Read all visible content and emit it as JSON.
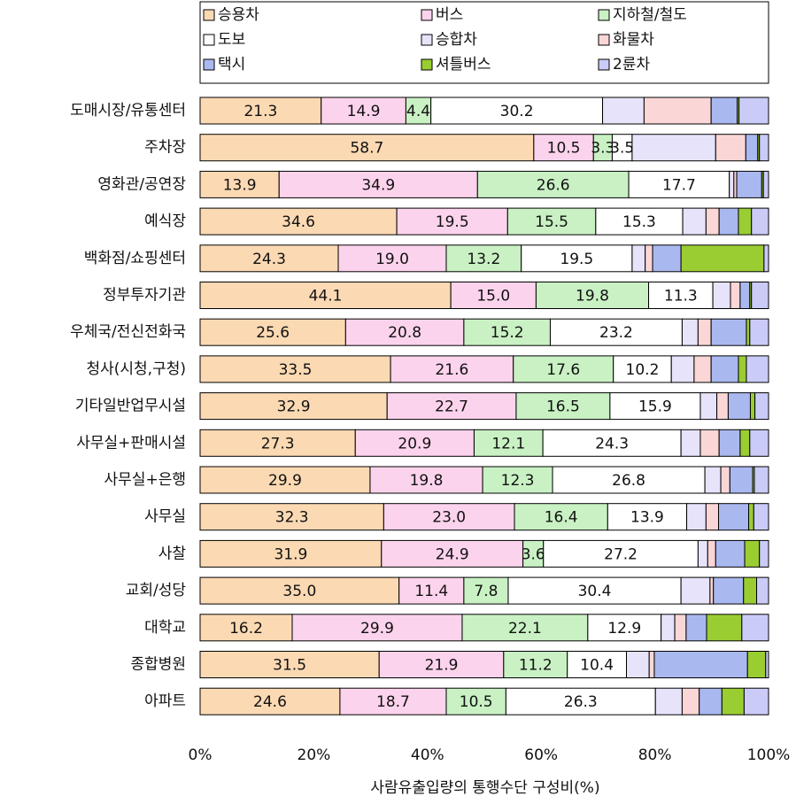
{
  "chart_data": {
    "type": "stacked_bar_horizontal",
    "xlabel": "사람유출입량의 통행수단 구성비(%)",
    "categories": [
      "도매시장/유통센터",
      "주차장",
      "영화관/공연장",
      "예식장",
      "백화점/쇼핑센터",
      "정부투자기관",
      "우체국/전신전화국",
      "청사(시청,구청)",
      "기타일반업무시설",
      "사무실+판매시설",
      "사무실+은행",
      "사무실",
      "사찰",
      "교회/성당",
      "대학교",
      "종합병원",
      "아파트"
    ],
    "series": [
      {
        "name": "승용차",
        "color": "#fbd9b3",
        "values": [
          21.3,
          58.7,
          13.9,
          34.6,
          24.3,
          44.1,
          25.6,
          33.5,
          32.9,
          27.3,
          29.9,
          32.3,
          31.9,
          35.0,
          16.2,
          31.5,
          24.6
        ],
        "value_labels": [
          "21.3",
          "58.7",
          "13.9",
          "34.6",
          "24.3",
          "44.1",
          "25.6",
          "33.5",
          "32.9",
          "27.3",
          "29.9",
          "32.3",
          "31.9",
          "35.0",
          "16.2",
          "31.5",
          "24.6"
        ]
      },
      {
        "name": "버스",
        "color": "#fcd3ec",
        "values": [
          14.9,
          10.5,
          34.9,
          19.5,
          19.0,
          15.0,
          20.8,
          21.6,
          22.7,
          20.9,
          19.8,
          23.0,
          24.9,
          11.4,
          29.9,
          21.9,
          18.7
        ],
        "value_labels": [
          "14.9",
          "10.5",
          "34.9",
          "19.5",
          "19.0",
          "15.0",
          "20.8",
          "21.6",
          "22.7",
          "20.9",
          "19.8",
          "23.0",
          "24.9",
          "11.4",
          "29.9",
          "21.9",
          "18.7"
        ]
      },
      {
        "name": "지하철/철도",
        "color": "#c9f1c4",
        "values": [
          4.4,
          3.3,
          26.6,
          15.5,
          13.2,
          19.8,
          15.2,
          17.6,
          16.5,
          12.1,
          12.3,
          16.4,
          3.6,
          7.8,
          22.1,
          11.2,
          10.5
        ],
        "value_labels": [
          "4.4",
          "3.3",
          "26.6",
          "15.5",
          "13.2",
          "19.8",
          "15.2",
          "17.6",
          "16.5",
          "12.1",
          "12.3",
          "16.4",
          "3.6",
          "7.8",
          "22.1",
          "11.2",
          "10.5"
        ]
      },
      {
        "name": "도보",
        "color": "#ffffff",
        "values": [
          30.2,
          3.5,
          17.7,
          15.3,
          19.5,
          11.3,
          23.2,
          10.2,
          15.9,
          24.3,
          26.8,
          13.9,
          27.2,
          30.4,
          12.9,
          10.4,
          26.3
        ],
        "value_labels": [
          "30.2",
          "3.5",
          "17.7",
          "15.3",
          "19.5",
          "11.3",
          "23.2",
          "10.2",
          "15.9",
          "24.3",
          "26.8",
          "13.9",
          "27.2",
          "30.4",
          "12.9",
          "10.4",
          "26.3"
        ]
      },
      {
        "name": "승합차",
        "color": "#e6e3fb",
        "values": [
          7.3,
          14.7,
          0.8,
          4.1,
          2.3,
          3.1,
          2.8,
          4.0,
          2.9,
          3.4,
          2.8,
          3.4,
          1.7,
          5.1,
          2.4,
          4.0,
          4.7
        ]
      },
      {
        "name": "화물차",
        "color": "#fad6d6",
        "values": [
          11.8,
          5.3,
          0.5,
          2.3,
          1.3,
          1.7,
          2.3,
          3.0,
          2.0,
          3.3,
          1.6,
          2.2,
          1.4,
          0.6,
          2.0,
          0.9,
          3.0
        ]
      },
      {
        "name": "택시",
        "color": "#aab8f0",
        "values": [
          4.6,
          2.1,
          4.4,
          3.4,
          5.0,
          1.7,
          6.2,
          4.8,
          3.9,
          3.7,
          4.0,
          5.3,
          5.1,
          5.3,
          3.6,
          16.4,
          4.0
        ]
      },
      {
        "name": "셔틀버스",
        "color": "#9acd32",
        "values": [
          0.3,
          0.3,
          0.3,
          2.3,
          14.6,
          0.3,
          0.6,
          1.4,
          0.8,
          1.7,
          0.3,
          0.9,
          2.6,
          2.3,
          6.2,
          3.2,
          3.9
        ]
      },
      {
        "name": "2륜차",
        "color": "#cbcbf8",
        "values": [
          5.2,
          1.6,
          0.9,
          3.0,
          0.8,
          3.0,
          3.3,
          3.9,
          2.4,
          3.3,
          2.5,
          2.6,
          1.6,
          2.1,
          4.7,
          0.5,
          4.3
        ]
      }
    ],
    "xlim": [
      0,
      100
    ],
    "xticks": [
      {
        "value": 0,
        "label": "0%"
      },
      {
        "value": 20,
        "label": "20%"
      },
      {
        "value": 40,
        "label": "40%"
      },
      {
        "value": 60,
        "label": "60%"
      },
      {
        "value": 80,
        "label": "80%"
      },
      {
        "value": 100,
        "label": "100%"
      }
    ],
    "legend": "top"
  }
}
